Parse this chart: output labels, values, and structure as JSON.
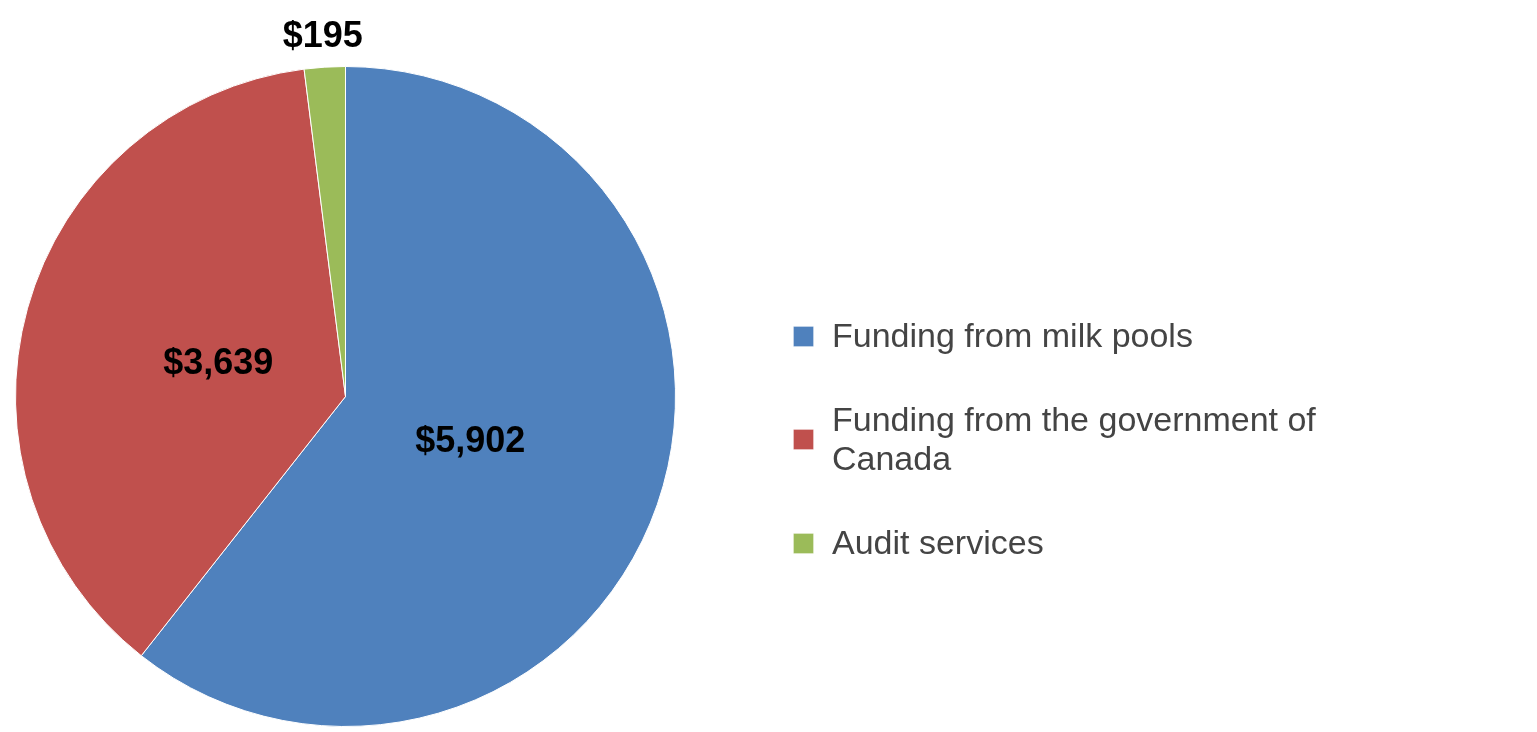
{
  "chart_data": {
    "type": "pie",
    "categories": [
      "Funding from milk pools",
      "Funding from the government of Canada",
      "Audit services"
    ],
    "values": [
      5902,
      3639,
      195
    ],
    "colors": [
      "#4f81bd",
      "#c0504d",
      "#9bbb59"
    ],
    "value_labels": [
      "$5,902",
      "$3,639",
      "$195"
    ],
    "legend": "right"
  }
}
